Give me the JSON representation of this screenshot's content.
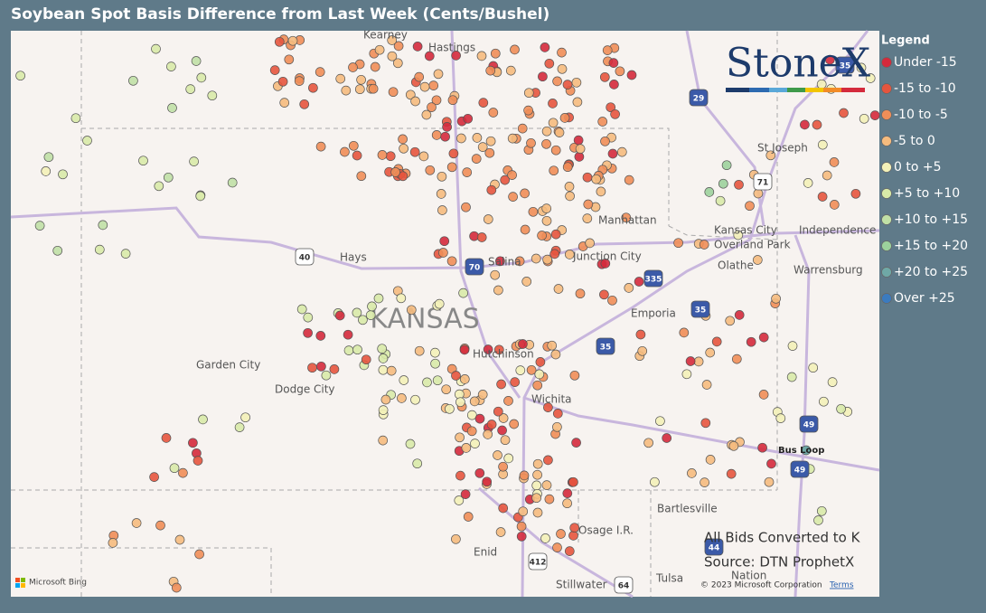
{
  "title": "Soybean Spot Basis Difference from Last Week (Cents/Bushel)",
  "legend": {
    "title": "Legend",
    "items": [
      {
        "label": "Under -15",
        "color": "#d42a3c"
      },
      {
        "label": "-15 to -10",
        "color": "#e5553e"
      },
      {
        "label": "-10 to -5",
        "color": "#ef8e58"
      },
      {
        "label": "-5 to 0",
        "color": "#f5bb7e"
      },
      {
        "label": "0 to +5",
        "color": "#f3f1b8"
      },
      {
        "label": "+5 to +10",
        "color": "#d8eaa8"
      },
      {
        "label": "+10 to +15",
        "color": "#c0e0a6"
      },
      {
        "label": "+15 to +20",
        "color": "#9cd19c"
      },
      {
        "label": "+20 to +25",
        "color": "#6fa8a6"
      },
      {
        "label": "Over +25",
        "color": "#3b7bbf"
      }
    ]
  },
  "map": {
    "region_label": "KANSAS",
    "places": [
      "Kearney",
      "Hastings",
      "Hays",
      "Salina",
      "Junction City",
      "Manhattan",
      "Emporia",
      "Hutchinson",
      "Wichita",
      "Garden City",
      "Dodge City",
      "St Joseph",
      "Kansas City",
      "Independence",
      "Overland Park",
      "Olathe",
      "Warrensburg",
      "Bartlesville",
      "Osage I.R.",
      "Enid",
      "Tulsa",
      "Stillwater",
      "Nation",
      "Bus Loop"
    ],
    "highways": [
      "40",
      "70",
      "35",
      "335",
      "35",
      "29",
      "35",
      "71",
      "49",
      "49",
      "44",
      "412",
      "64"
    ]
  },
  "logo": "StoneX",
  "notes": [
    "All Bids Converted to K",
    "Source: DTN ProphetX"
  ],
  "attribution": {
    "provider": "Microsoft Bing",
    "copyright": "© 2023 Microsoft Corporation",
    "terms": "Terms"
  }
}
